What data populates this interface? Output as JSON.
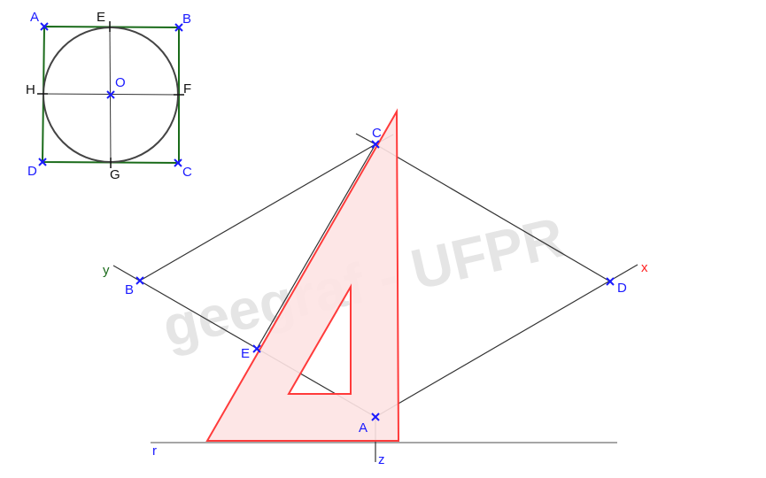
{
  "watermark": "geegraf - UFPR",
  "colors": {
    "point": "#1a1aff",
    "square": "#1a6b1a",
    "circle": "#444444",
    "set_square_fill": "#fde3e3",
    "set_square_stroke": "#ff3b3b",
    "axis_x": "#ff2020",
    "axis_y": "#1a6b1a"
  },
  "square_figure": {
    "vertices": [
      "A",
      "B",
      "C",
      "D"
    ],
    "midpoints": [
      "E",
      "F",
      "G",
      "H"
    ],
    "center": "O"
  },
  "perspective_figure": {
    "vertices": [
      "A",
      "B",
      "C",
      "D"
    ],
    "extra_point": "E",
    "axes": [
      "x",
      "y",
      "z"
    ],
    "ground_line": "r"
  }
}
